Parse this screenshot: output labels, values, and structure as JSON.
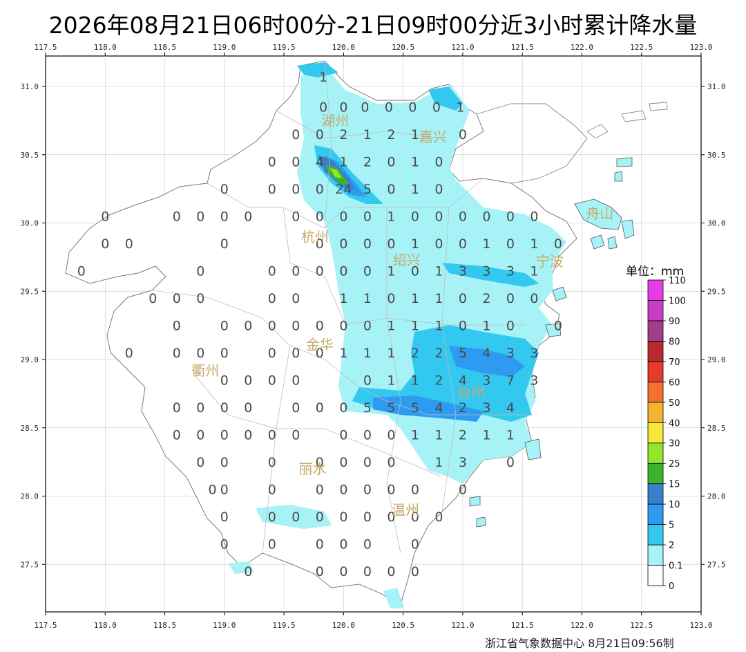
{
  "title": "2026年08月21日06时00分-21日09时00分近3小时累计降水量",
  "lon_ticks": [
    "117.5",
    "118.0",
    "118.5",
    "119.0",
    "119.5",
    "120.0",
    "120.5",
    "121.0",
    "121.5",
    "122.0",
    "122.5",
    "123.0"
  ],
  "lat_ticks": [
    "31.0",
    "30.5",
    "30.0",
    "29.5",
    "29.0",
    "28.5",
    "28.0",
    "27.5"
  ],
  "cities": [
    {
      "name": "湖州",
      "lon": 119.93,
      "lat": 30.75
    },
    {
      "name": "嘉兴",
      "lon": 120.75,
      "lat": 30.63
    },
    {
      "name": "杭州",
      "lon": 119.76,
      "lat": 29.9
    },
    {
      "name": "绍兴",
      "lon": 120.53,
      "lat": 29.73
    },
    {
      "name": "宁波",
      "lon": 121.73,
      "lat": 29.72
    },
    {
      "name": "舟山",
      "lon": 122.15,
      "lat": 30.07
    },
    {
      "name": "金华",
      "lon": 119.8,
      "lat": 29.11
    },
    {
      "name": "衢州",
      "lon": 118.84,
      "lat": 28.92
    },
    {
      "name": "台州",
      "lon": 121.07,
      "lat": 28.76
    },
    {
      "name": "丽水",
      "lon": 119.74,
      "lat": 28.2
    },
    {
      "name": "温州",
      "lon": 120.52,
      "lat": 27.9
    }
  ],
  "stations": [
    {
      "lon": 119.83,
      "lat": 31.07,
      "v": "1"
    },
    {
      "lon": 119.83,
      "lat": 30.85,
      "v": "0"
    },
    {
      "lon": 120.0,
      "lat": 30.85,
      "v": "0"
    },
    {
      "lon": 120.18,
      "lat": 30.85,
      "v": "0"
    },
    {
      "lon": 120.38,
      "lat": 30.85,
      "v": "0"
    },
    {
      "lon": 120.58,
      "lat": 30.85,
      "v": "0"
    },
    {
      "lon": 120.78,
      "lat": 30.85,
      "v": "0"
    },
    {
      "lon": 120.98,
      "lat": 30.85,
      "v": "1"
    },
    {
      "lon": 119.6,
      "lat": 30.65,
      "v": "0"
    },
    {
      "lon": 119.8,
      "lat": 30.65,
      "v": "0"
    },
    {
      "lon": 120.0,
      "lat": 30.65,
      "v": "2"
    },
    {
      "lon": 120.2,
      "lat": 30.65,
      "v": "1"
    },
    {
      "lon": 120.4,
      "lat": 30.65,
      "v": "2"
    },
    {
      "lon": 120.6,
      "lat": 30.65,
      "v": "1"
    },
    {
      "lon": 121.0,
      "lat": 30.65,
      "v": "0"
    },
    {
      "lon": 119.4,
      "lat": 30.45,
      "v": "0"
    },
    {
      "lon": 119.6,
      "lat": 30.45,
      "v": "0"
    },
    {
      "lon": 119.8,
      "lat": 30.45,
      "v": "4"
    },
    {
      "lon": 120.0,
      "lat": 30.45,
      "v": "1"
    },
    {
      "lon": 120.2,
      "lat": 30.45,
      "v": "2"
    },
    {
      "lon": 120.4,
      "lat": 30.45,
      "v": "0"
    },
    {
      "lon": 120.6,
      "lat": 30.45,
      "v": "1"
    },
    {
      "lon": 120.8,
      "lat": 30.45,
      "v": "0"
    },
    {
      "lon": 119.0,
      "lat": 30.25,
      "v": "0"
    },
    {
      "lon": 119.4,
      "lat": 30.25,
      "v": "0"
    },
    {
      "lon": 119.6,
      "lat": 30.25,
      "v": "0"
    },
    {
      "lon": 119.8,
      "lat": 30.25,
      "v": "0"
    },
    {
      "lon": 120.0,
      "lat": 30.25,
      "v": "24"
    },
    {
      "lon": 120.2,
      "lat": 30.25,
      "v": "5"
    },
    {
      "lon": 120.4,
      "lat": 30.25,
      "v": "0"
    },
    {
      "lon": 120.6,
      "lat": 30.25,
      "v": "1"
    },
    {
      "lon": 120.8,
      "lat": 30.25,
      "v": "0"
    },
    {
      "lon": 118.0,
      "lat": 30.05,
      "v": "0"
    },
    {
      "lon": 118.6,
      "lat": 30.05,
      "v": "0"
    },
    {
      "lon": 118.8,
      "lat": 30.05,
      "v": "0"
    },
    {
      "lon": 119.0,
      "lat": 30.05,
      "v": "0"
    },
    {
      "lon": 119.2,
      "lat": 30.05,
      "v": "0"
    },
    {
      "lon": 119.6,
      "lat": 30.05,
      "v": "0"
    },
    {
      "lon": 119.8,
      "lat": 30.05,
      "v": "0"
    },
    {
      "lon": 120.0,
      "lat": 30.05,
      "v": "0"
    },
    {
      "lon": 120.2,
      "lat": 30.05,
      "v": "0"
    },
    {
      "lon": 120.4,
      "lat": 30.05,
      "v": "1"
    },
    {
      "lon": 120.6,
      "lat": 30.05,
      "v": "0"
    },
    {
      "lon": 120.8,
      "lat": 30.05,
      "v": "0"
    },
    {
      "lon": 121.0,
      "lat": 30.05,
      "v": "0"
    },
    {
      "lon": 121.2,
      "lat": 30.05,
      "v": "0"
    },
    {
      "lon": 121.4,
      "lat": 30.05,
      "v": "0"
    },
    {
      "lon": 121.6,
      "lat": 30.05,
      "v": "0"
    },
    {
      "lon": 118.0,
      "lat": 29.85,
      "v": "0"
    },
    {
      "lon": 118.2,
      "lat": 29.85,
      "v": "0"
    },
    {
      "lon": 119.0,
      "lat": 29.85,
      "v": "0"
    },
    {
      "lon": 119.8,
      "lat": 29.85,
      "v": "0"
    },
    {
      "lon": 120.0,
      "lat": 29.85,
      "v": "0"
    },
    {
      "lon": 120.2,
      "lat": 29.85,
      "v": "0"
    },
    {
      "lon": 120.4,
      "lat": 29.85,
      "v": "0"
    },
    {
      "lon": 120.6,
      "lat": 29.85,
      "v": "1"
    },
    {
      "lon": 120.8,
      "lat": 29.85,
      "v": "0"
    },
    {
      "lon": 121.0,
      "lat": 29.85,
      "v": "0"
    },
    {
      "lon": 121.2,
      "lat": 29.85,
      "v": "1"
    },
    {
      "lon": 121.4,
      "lat": 29.85,
      "v": "0"
    },
    {
      "lon": 121.6,
      "lat": 29.85,
      "v": "1"
    },
    {
      "lon": 121.8,
      "lat": 29.85,
      "v": "0"
    },
    {
      "lon": 117.8,
      "lat": 29.65,
      "v": "0"
    },
    {
      "lon": 118.8,
      "lat": 29.65,
      "v": "0"
    },
    {
      "lon": 119.4,
      "lat": 29.65,
      "v": "0"
    },
    {
      "lon": 119.6,
      "lat": 29.65,
      "v": "0"
    },
    {
      "lon": 119.8,
      "lat": 29.65,
      "v": "0"
    },
    {
      "lon": 120.0,
      "lat": 29.65,
      "v": "0"
    },
    {
      "lon": 120.2,
      "lat": 29.65,
      "v": "0"
    },
    {
      "lon": 120.4,
      "lat": 29.65,
      "v": "1"
    },
    {
      "lon": 120.6,
      "lat": 29.65,
      "v": "0"
    },
    {
      "lon": 120.8,
      "lat": 29.65,
      "v": "1"
    },
    {
      "lon": 121.0,
      "lat": 29.65,
      "v": "3"
    },
    {
      "lon": 121.2,
      "lat": 29.65,
      "v": "3"
    },
    {
      "lon": 121.4,
      "lat": 29.65,
      "v": "3"
    },
    {
      "lon": 121.6,
      "lat": 29.65,
      "v": "1"
    },
    {
      "lon": 118.4,
      "lat": 29.45,
      "v": "0"
    },
    {
      "lon": 118.6,
      "lat": 29.45,
      "v": "0"
    },
    {
      "lon": 118.8,
      "lat": 29.45,
      "v": "0"
    },
    {
      "lon": 119.4,
      "lat": 29.45,
      "v": "0"
    },
    {
      "lon": 119.6,
      "lat": 29.45,
      "v": "0"
    },
    {
      "lon": 120.0,
      "lat": 29.45,
      "v": "1"
    },
    {
      "lon": 120.2,
      "lat": 29.45,
      "v": "1"
    },
    {
      "lon": 120.4,
      "lat": 29.45,
      "v": "0"
    },
    {
      "lon": 120.6,
      "lat": 29.45,
      "v": "1"
    },
    {
      "lon": 120.8,
      "lat": 29.45,
      "v": "1"
    },
    {
      "lon": 121.0,
      "lat": 29.45,
      "v": "0"
    },
    {
      "lon": 121.2,
      "lat": 29.45,
      "v": "2"
    },
    {
      "lon": 121.4,
      "lat": 29.45,
      "v": "0"
    },
    {
      "lon": 121.6,
      "lat": 29.45,
      "v": "0"
    },
    {
      "lon": 118.6,
      "lat": 29.25,
      "v": "0"
    },
    {
      "lon": 119.0,
      "lat": 29.25,
      "v": "0"
    },
    {
      "lon": 119.2,
      "lat": 29.25,
      "v": "0"
    },
    {
      "lon": 119.4,
      "lat": 29.25,
      "v": "0"
    },
    {
      "lon": 119.6,
      "lat": 29.25,
      "v": "0"
    },
    {
      "lon": 119.8,
      "lat": 29.25,
      "v": "0"
    },
    {
      "lon": 120.0,
      "lat": 29.25,
      "v": "0"
    },
    {
      "lon": 120.2,
      "lat": 29.25,
      "v": "0"
    },
    {
      "lon": 120.4,
      "lat": 29.25,
      "v": "1"
    },
    {
      "lon": 120.6,
      "lat": 29.25,
      "v": "1"
    },
    {
      "lon": 120.8,
      "lat": 29.25,
      "v": "1"
    },
    {
      "lon": 121.0,
      "lat": 29.25,
      "v": "0"
    },
    {
      "lon": 121.2,
      "lat": 29.25,
      "v": "1"
    },
    {
      "lon": 121.4,
      "lat": 29.25,
      "v": "0"
    },
    {
      "lon": 121.8,
      "lat": 29.25,
      "v": "0"
    },
    {
      "lon": 118.2,
      "lat": 29.05,
      "v": "0"
    },
    {
      "lon": 118.6,
      "lat": 29.05,
      "v": "0"
    },
    {
      "lon": 118.8,
      "lat": 29.05,
      "v": "0"
    },
    {
      "lon": 119.0,
      "lat": 29.05,
      "v": "0"
    },
    {
      "lon": 119.4,
      "lat": 29.05,
      "v": "0"
    },
    {
      "lon": 119.6,
      "lat": 29.05,
      "v": "0"
    },
    {
      "lon": 119.8,
      "lat": 29.05,
      "v": "0"
    },
    {
      "lon": 120.0,
      "lat": 29.05,
      "v": "1"
    },
    {
      "lon": 120.2,
      "lat": 29.05,
      "v": "1"
    },
    {
      "lon": 120.4,
      "lat": 29.05,
      "v": "1"
    },
    {
      "lon": 120.6,
      "lat": 29.05,
      "v": "2"
    },
    {
      "lon": 120.8,
      "lat": 29.05,
      "v": "2"
    },
    {
      "lon": 121.0,
      "lat": 29.05,
      "v": "5"
    },
    {
      "lon": 121.2,
      "lat": 29.05,
      "v": "4"
    },
    {
      "lon": 121.4,
      "lat": 29.05,
      "v": "3"
    },
    {
      "lon": 121.6,
      "lat": 29.05,
      "v": "3"
    },
    {
      "lon": 119.0,
      "lat": 28.85,
      "v": "0"
    },
    {
      "lon": 119.2,
      "lat": 28.85,
      "v": "0"
    },
    {
      "lon": 119.4,
      "lat": 28.85,
      "v": "0"
    },
    {
      "lon": 119.6,
      "lat": 28.85,
      "v": "0"
    },
    {
      "lon": 120.2,
      "lat": 28.85,
      "v": "0"
    },
    {
      "lon": 120.4,
      "lat": 28.85,
      "v": "1"
    },
    {
      "lon": 120.6,
      "lat": 28.85,
      "v": "1"
    },
    {
      "lon": 120.8,
      "lat": 28.85,
      "v": "2"
    },
    {
      "lon": 121.0,
      "lat": 28.85,
      "v": "4"
    },
    {
      "lon": 121.2,
      "lat": 28.85,
      "v": "3"
    },
    {
      "lon": 121.4,
      "lat": 28.85,
      "v": "7"
    },
    {
      "lon": 121.6,
      "lat": 28.85,
      "v": "3"
    },
    {
      "lon": 118.6,
      "lat": 28.65,
      "v": "0"
    },
    {
      "lon": 118.8,
      "lat": 28.65,
      "v": "0"
    },
    {
      "lon": 119.0,
      "lat": 28.65,
      "v": "0"
    },
    {
      "lon": 119.2,
      "lat": 28.65,
      "v": "0"
    },
    {
      "lon": 119.6,
      "lat": 28.65,
      "v": "0"
    },
    {
      "lon": 119.8,
      "lat": 28.65,
      "v": "0"
    },
    {
      "lon": 120.0,
      "lat": 28.65,
      "v": "0"
    },
    {
      "lon": 120.2,
      "lat": 28.65,
      "v": "5"
    },
    {
      "lon": 120.4,
      "lat": 28.65,
      "v": "5"
    },
    {
      "lon": 120.6,
      "lat": 28.65,
      "v": "5"
    },
    {
      "lon": 120.8,
      "lat": 28.65,
      "v": "4"
    },
    {
      "lon": 121.0,
      "lat": 28.65,
      "v": "2"
    },
    {
      "lon": 121.2,
      "lat": 28.65,
      "v": "3"
    },
    {
      "lon": 121.4,
      "lat": 28.65,
      "v": "4"
    },
    {
      "lon": 118.6,
      "lat": 28.45,
      "v": "0"
    },
    {
      "lon": 118.8,
      "lat": 28.45,
      "v": "0"
    },
    {
      "lon": 119.0,
      "lat": 28.45,
      "v": "0"
    },
    {
      "lon": 119.2,
      "lat": 28.45,
      "v": "0"
    },
    {
      "lon": 119.4,
      "lat": 28.45,
      "v": "0"
    },
    {
      "lon": 119.6,
      "lat": 28.45,
      "v": "0"
    },
    {
      "lon": 120.0,
      "lat": 28.45,
      "v": "0"
    },
    {
      "lon": 120.2,
      "lat": 28.45,
      "v": "0"
    },
    {
      "lon": 120.4,
      "lat": 28.45,
      "v": "0"
    },
    {
      "lon": 120.6,
      "lat": 28.45,
      "v": "1"
    },
    {
      "lon": 120.8,
      "lat": 28.45,
      "v": "1"
    },
    {
      "lon": 121.0,
      "lat": 28.45,
      "v": "2"
    },
    {
      "lon": 121.2,
      "lat": 28.45,
      "v": "1"
    },
    {
      "lon": 121.4,
      "lat": 28.45,
      "v": "1"
    },
    {
      "lon": 118.8,
      "lat": 28.25,
      "v": "0"
    },
    {
      "lon": 119.0,
      "lat": 28.25,
      "v": "0"
    },
    {
      "lon": 119.4,
      "lat": 28.25,
      "v": "0"
    },
    {
      "lon": 119.8,
      "lat": 28.25,
      "v": "0"
    },
    {
      "lon": 120.0,
      "lat": 28.25,
      "v": "0"
    },
    {
      "lon": 120.2,
      "lat": 28.25,
      "v": "0"
    },
    {
      "lon": 120.4,
      "lat": 28.25,
      "v": "0"
    },
    {
      "lon": 120.8,
      "lat": 28.25,
      "v": "1"
    },
    {
      "lon": 121.0,
      "lat": 28.25,
      "v": "3"
    },
    {
      "lon": 121.4,
      "lat": 28.25,
      "v": "0"
    },
    {
      "lon": 118.9,
      "lat": 28.05,
      "v": "0"
    },
    {
      "lon": 119.0,
      "lat": 28.05,
      "v": "0"
    },
    {
      "lon": 119.4,
      "lat": 28.05,
      "v": "0"
    },
    {
      "lon": 119.8,
      "lat": 28.05,
      "v": "0"
    },
    {
      "lon": 120.0,
      "lat": 28.05,
      "v": "0"
    },
    {
      "lon": 120.2,
      "lat": 28.05,
      "v": "0"
    },
    {
      "lon": 120.4,
      "lat": 28.05,
      "v": "0"
    },
    {
      "lon": 120.6,
      "lat": 28.05,
      "v": "0"
    },
    {
      "lon": 121.0,
      "lat": 28.05,
      "v": "0"
    },
    {
      "lon": 119.0,
      "lat": 27.85,
      "v": "0"
    },
    {
      "lon": 119.4,
      "lat": 27.85,
      "v": "0"
    },
    {
      "lon": 119.6,
      "lat": 27.85,
      "v": "0"
    },
    {
      "lon": 119.8,
      "lat": 27.85,
      "v": "0"
    },
    {
      "lon": 120.0,
      "lat": 27.85,
      "v": "0"
    },
    {
      "lon": 120.2,
      "lat": 27.85,
      "v": "0"
    },
    {
      "lon": 120.4,
      "lat": 27.85,
      "v": "0"
    },
    {
      "lon": 120.6,
      "lat": 27.85,
      "v": "0"
    },
    {
      "lon": 120.8,
      "lat": 27.85,
      "v": "0"
    },
    {
      "lon": 119.0,
      "lat": 27.65,
      "v": "0"
    },
    {
      "lon": 119.4,
      "lat": 27.65,
      "v": "0"
    },
    {
      "lon": 119.8,
      "lat": 27.65,
      "v": "0"
    },
    {
      "lon": 120.0,
      "lat": 27.65,
      "v": "0"
    },
    {
      "lon": 120.2,
      "lat": 27.65,
      "v": "0"
    },
    {
      "lon": 120.6,
      "lat": 27.65,
      "v": "0"
    },
    {
      "lon": 119.2,
      "lat": 27.45,
      "v": "0"
    },
    {
      "lon": 119.8,
      "lat": 27.45,
      "v": "0"
    },
    {
      "lon": 120.0,
      "lat": 27.45,
      "v": "0"
    },
    {
      "lon": 120.2,
      "lat": 27.45,
      "v": "0"
    },
    {
      "lon": 120.4,
      "lat": 27.45,
      "v": "0"
    },
    {
      "lon": 120.6,
      "lat": 27.45,
      "v": "0"
    }
  ],
  "legend": {
    "title": "单位：mm",
    "levels": [
      {
        "label": "0",
        "color": "#ffffff"
      },
      {
        "label": "0.1",
        "color": "#a6f2f7"
      },
      {
        "label": "2",
        "color": "#32c8f0"
      },
      {
        "label": "5",
        "color": "#2f9bf0"
      },
      {
        "label": "10",
        "color": "#3a7fcf"
      },
      {
        "label": "15",
        "color": "#3cb32c"
      },
      {
        "label": "25",
        "color": "#8fe62c"
      },
      {
        "label": "30",
        "color": "#f5e836"
      },
      {
        "label": "40",
        "color": "#f5b22f"
      },
      {
        "label": "50",
        "color": "#f5702e"
      },
      {
        "label": "60",
        "color": "#e33b2e"
      },
      {
        "label": "70",
        "color": "#ba2a2a"
      },
      {
        "label": "80",
        "color": "#a23d8c"
      },
      {
        "label": "90",
        "color": "#c83cc8"
      },
      {
        "label": "100",
        "color": "#e83ae8"
      },
      {
        "label": "110",
        "color": ""
      }
    ]
  },
  "credit": "浙江省气象数据中心  8月21日09:56制"
}
